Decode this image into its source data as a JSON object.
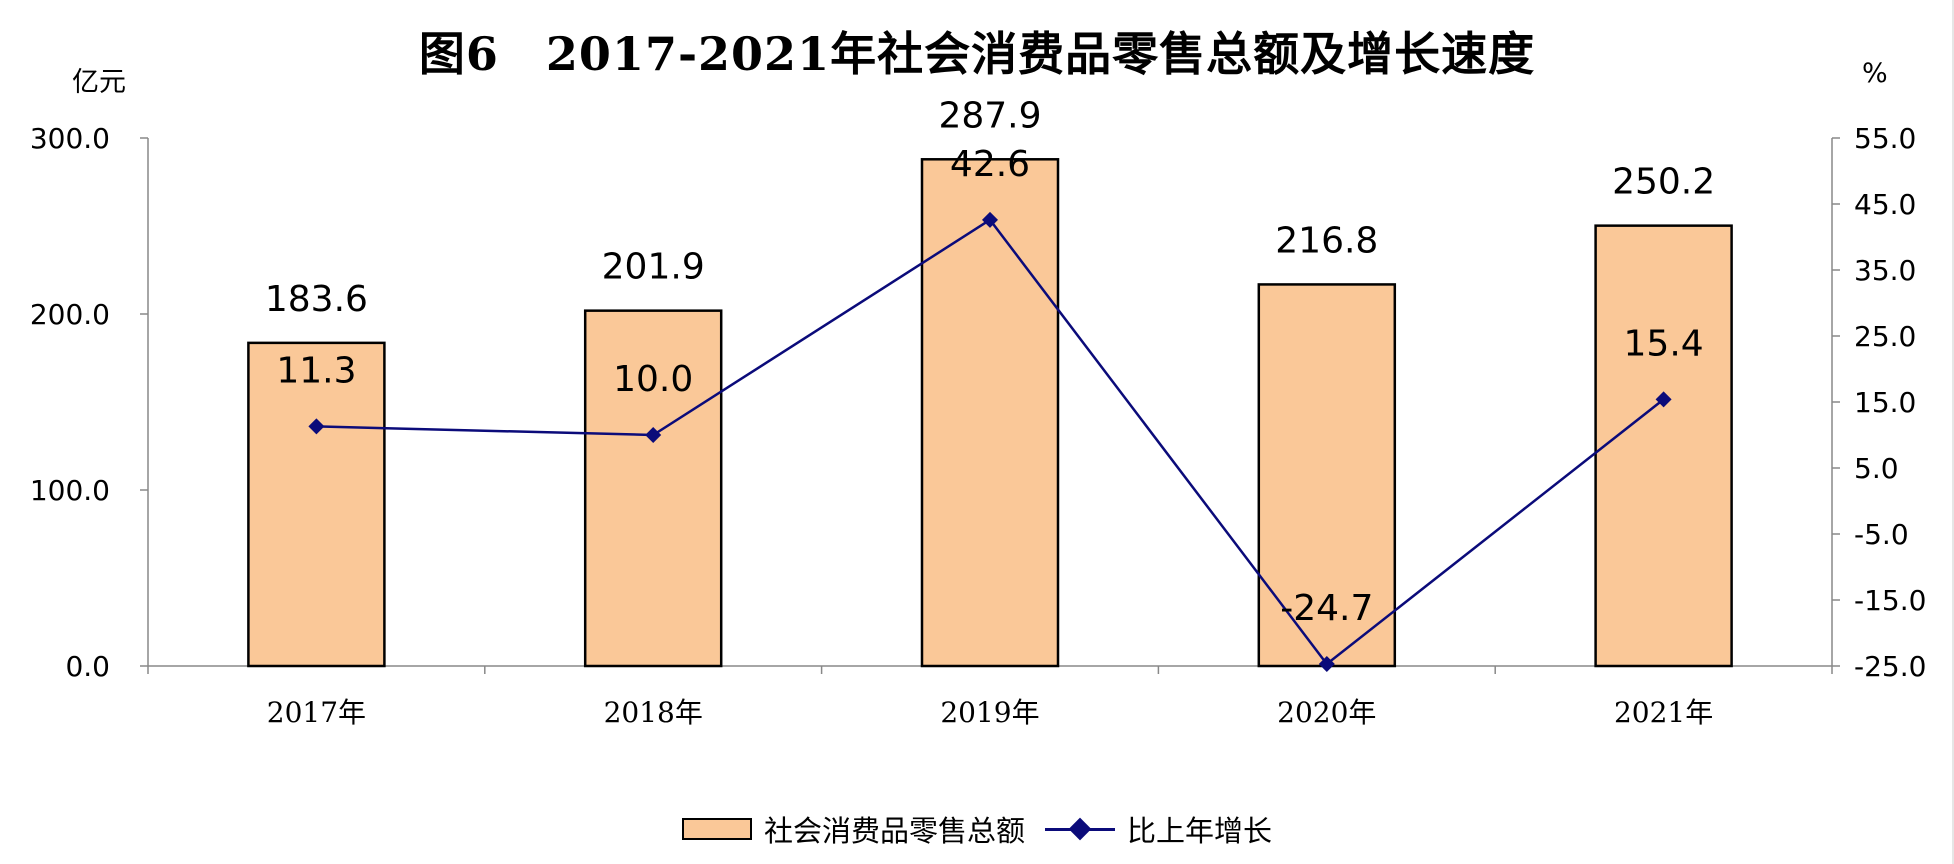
{
  "title": "图6　2017-2021年社会消费品零售总额及增长速度",
  "left_unit": "亿元",
  "right_unit": "%",
  "legend": {
    "bar_label": "社会消费品零售总额",
    "line_label": "比上年增长"
  },
  "colors": {
    "bar_fill": "#FAC898",
    "bar_stroke": "#000000",
    "line": "#0B0B7A"
  },
  "chart_data": {
    "type": "bar",
    "categories": [
      "2017年",
      "2018年",
      "2019年",
      "2020年",
      "2021年"
    ],
    "series": [
      {
        "name": "社会消费品零售总额",
        "type": "bar",
        "axis": "left",
        "values": [
          183.6,
          201.9,
          287.9,
          216.8,
          250.2
        ],
        "labels": [
          "183.6",
          "201.9",
          "287.9",
          "216.8",
          "250.2"
        ]
      },
      {
        "name": "比上年增长",
        "type": "line",
        "axis": "right",
        "values": [
          11.3,
          10.0,
          42.6,
          -24.7,
          15.4
        ],
        "labels": [
          "11.3",
          "10.0",
          "42.6",
          "-24.7",
          "15.4"
        ]
      }
    ],
    "left_axis": {
      "unit": "亿元",
      "ylim": [
        0,
        300
      ],
      "ticks": [
        "0.0",
        "100.0",
        "200.0",
        "300.0"
      ]
    },
    "right_axis": {
      "unit": "%",
      "ylim": [
        -25,
        55
      ],
      "ticks": [
        "-25.0",
        "-15.0",
        "-5.0",
        "5.0",
        "15.0",
        "25.0",
        "35.0",
        "45.0",
        "55.0"
      ]
    },
    "grid": false,
    "legend_position": "bottom"
  }
}
